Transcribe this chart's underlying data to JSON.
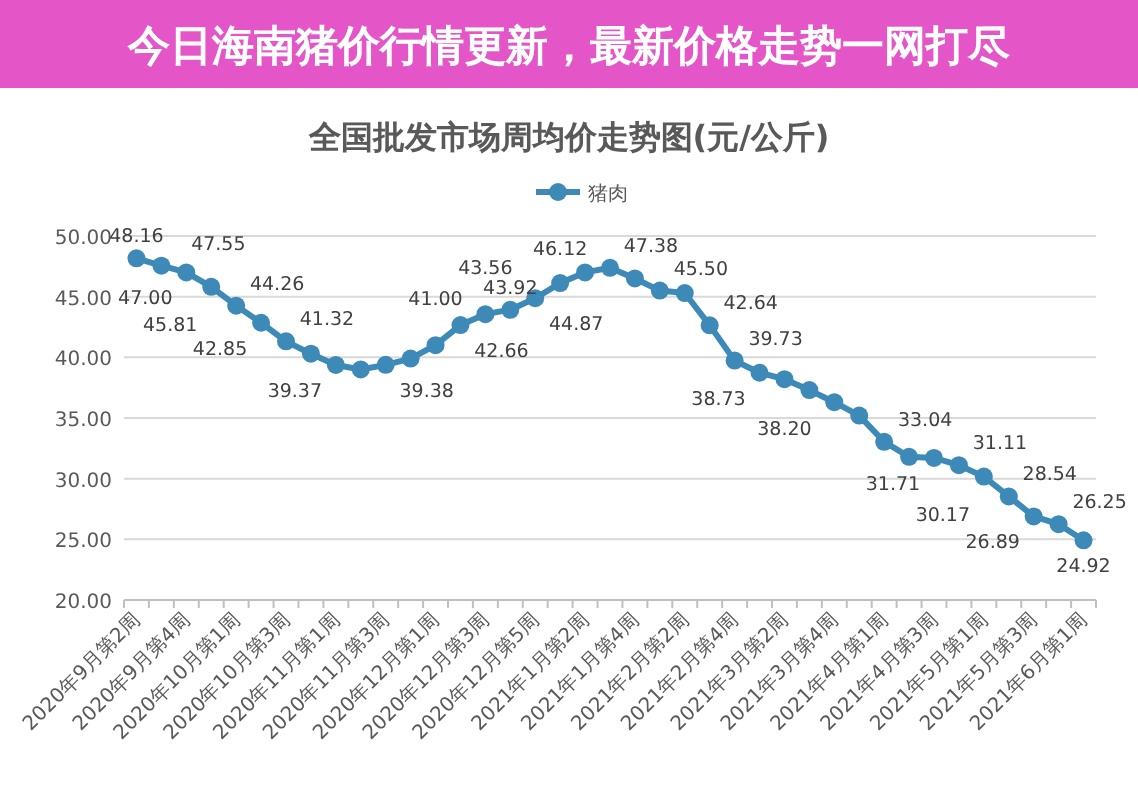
{
  "chart_data": {
    "type": "line",
    "title": "全国批发市场周均价走势图(元/公斤)",
    "categories": [
      "2020年9月第2周",
      null,
      "2020年9月第4周",
      null,
      "2020年10月第1周",
      null,
      "2020年10月第3周",
      null,
      "2020年11月第1周",
      null,
      "2020年11月第3周",
      null,
      "2020年12月第1周",
      null,
      "2020年12月第3周",
      null,
      "2020年12月第5周",
      null,
      "2021年1月第2周",
      null,
      "2021年1月第4周",
      null,
      "2021年2月第2周",
      null,
      "2021年2月第4周",
      null,
      "2021年3月第2周",
      null,
      "2021年3月第4周",
      null,
      "2021年4月第1周",
      null,
      "2021年4月第3周",
      null,
      "2021年5月第1周",
      null,
      "2021年5月第3周",
      null,
      "2021年6月第1周"
    ],
    "series": [
      {
        "name": "猪肉",
        "color": "#3d8ab8",
        "values": [
          48.16,
          47.55,
          47.0,
          45.81,
          44.26,
          42.85,
          41.32,
          40.3,
          39.37,
          39.0,
          39.38,
          39.9,
          41.0,
          42.66,
          43.56,
          43.92,
          44.87,
          46.12,
          47.0,
          47.38,
          46.5,
          45.5,
          45.3,
          42.64,
          39.73,
          38.73,
          38.2,
          37.3,
          36.3,
          35.2,
          33.04,
          31.8,
          31.71,
          31.11,
          30.17,
          28.54,
          26.89,
          26.25,
          24.92
        ],
        "value_labels": [
          "48.16",
          "47.55",
          "47.00",
          "45.81",
          "44.26",
          "42.85",
          "41.32",
          null,
          "39.37",
          null,
          "39.38",
          null,
          "41.00",
          "42.66",
          "43.56",
          "43.92",
          "44.87",
          "46.12",
          null,
          "47.38",
          null,
          "45.50",
          null,
          "42.64",
          "39.73",
          "38.73",
          "38.20",
          null,
          null,
          null,
          "33.04",
          null,
          "31.71",
          "31.11",
          "30.17",
          "28.54",
          "26.89",
          "26.25",
          "24.92"
        ]
      }
    ],
    "ylim": [
      20,
      50
    ],
    "yticks": [
      {
        "value": 20,
        "label": "20.00"
      },
      {
        "value": 25,
        "label": "25.00"
      },
      {
        "value": 30,
        "label": "30.00"
      },
      {
        "value": 35,
        "label": "35.00"
      },
      {
        "value": 40,
        "label": "40.00"
      },
      {
        "value": 45,
        "label": "45.00"
      },
      {
        "value": 50,
        "label": "50.00"
      }
    ],
    "grid": "y",
    "legend": "top",
    "marker": "circle",
    "line_style": "solid",
    "annotations": [
      "今日海南猪价行情更新，最新价格走势一网打尽"
    ]
  }
}
